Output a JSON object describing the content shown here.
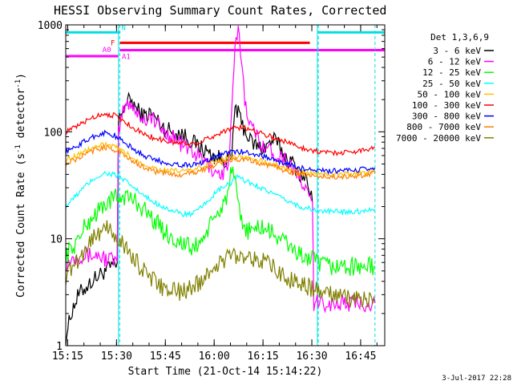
{
  "chart_data": {
    "type": "line",
    "title": "HESSI Observing Summary Count Rates, Corrected",
    "xlabel": "Start Time (21-Oct-14 15:14:22)",
    "ylabel_main": "Corrected Count Rate (s",
    "ylabel_sup1": "-1",
    "ylabel_mid": " detector",
    "ylabel_sup2": "-1",
    "ylabel_end": ")",
    "yscale": "log",
    "ylim": [
      1,
      1000
    ],
    "xlim_minutes": [
      0,
      98
    ],
    "y_ticks": [
      {
        "value": 1,
        "label": "1"
      },
      {
        "value": 10,
        "label": "10"
      },
      {
        "value": 100,
        "label": "100"
      },
      {
        "value": 1000,
        "label": "1000"
      }
    ],
    "x_ticks": [
      {
        "value": 0.6,
        "label": "15:15"
      },
      {
        "value": 15.6,
        "label": "15:30"
      },
      {
        "value": 30.6,
        "label": "15:45"
      },
      {
        "value": 45.6,
        "label": "16:00"
      },
      {
        "value": 60.6,
        "label": "16:15"
      },
      {
        "value": 75.6,
        "label": "16:30"
      },
      {
        "value": 90.6,
        "label": "16:45"
      }
    ],
    "legend_title": "Det 1,3,6,9",
    "legend_placement": "right",
    "timestamp": "3-Jul-2017 22:28",
    "markers": [
      {
        "label": "N",
        "color": "#00e0e0"
      },
      {
        "label": "F",
        "color": "#ff0000"
      },
      {
        "label": "A0",
        "color": "#ff00ff"
      },
      {
        "label": "A1",
        "color": "#ff00ff"
      }
    ],
    "bars": [
      {
        "name": "night-left",
        "x": [
          0,
          16.8
        ],
        "y": 850,
        "color": "#00e0e0"
      },
      {
        "name": "night-right",
        "x": [
          77.5,
          98
        ],
        "y": 850,
        "color": "#00e0e0"
      },
      {
        "name": "flare",
        "x": [
          16.5,
          75
        ],
        "y": 680,
        "color": "#ff0000"
      },
      {
        "name": "attenuator-a0",
        "x": [
          0,
          16.2
        ],
        "y": 510,
        "color": "#ff00ff"
      },
      {
        "name": "attenuator-a1",
        "x": [
          16.5,
          98
        ],
        "y": 580,
        "color": "#ff00ff"
      }
    ],
    "vlines": [
      {
        "x": 16.2,
        "color": "#00e0e0",
        "dash": false
      },
      {
        "x": 16.6,
        "color": "#00e0e0",
        "dash": true
      },
      {
        "x": 77.3,
        "color": "#00e0e0",
        "dash": false
      },
      {
        "x": 77.6,
        "color": "#00e0e0",
        "dash": true
      },
      {
        "x": 95.0,
        "color": "#00e0e0",
        "dash": true
      }
    ],
    "series": [
      {
        "name": "3 - 6 keV",
        "color": "#000000",
        "gap": [
          76.2,
          98
        ],
        "x": [
          0,
          2,
          4,
          6,
          8,
          10,
          12,
          14,
          15.8,
          16.2,
          18,
          20,
          22,
          24,
          26,
          28,
          30,
          33,
          36,
          39,
          42,
          45,
          48,
          51,
          52,
          54,
          57,
          60,
          62,
          64,
          66,
          68,
          70,
          72,
          74,
          75.8
        ],
        "y": [
          1.2,
          2.2,
          3.0,
          3.5,
          4.0,
          4.5,
          5.0,
          5.5,
          5.5,
          120,
          180,
          200,
          160,
          140,
          150,
          130,
          110,
          100,
          95,
          80,
          70,
          60,
          55,
          55,
          180,
          120,
          80,
          70,
          75,
          85,
          70,
          55,
          50,
          40,
          35,
          22
        ]
      },
      {
        "name": "6 - 12 keV",
        "color": "#ff00ff",
        "gap": null,
        "x": [
          0,
          2,
          4,
          6,
          8,
          10,
          12,
          14,
          15.8,
          16.2,
          18,
          20,
          22,
          24,
          26,
          28,
          30,
          33,
          36,
          39,
          42,
          45,
          48,
          50,
          51,
          52,
          53,
          54,
          55,
          57,
          60,
          63,
          66,
          69,
          72,
          74,
          75.8,
          76.2,
          80,
          85,
          90,
          95
        ],
        "y": [
          6,
          6.5,
          7,
          7,
          7,
          7,
          6.5,
          6.5,
          6,
          100,
          170,
          190,
          150,
          130,
          140,
          120,
          100,
          90,
          75,
          65,
          55,
          45,
          40,
          50,
          140,
          600,
          850,
          500,
          200,
          110,
          80,
          65,
          60,
          50,
          35,
          28,
          20,
          2.5,
          2.5,
          2.5,
          2.5,
          2.5
        ]
      },
      {
        "name": "12 - 25 keV",
        "color": "#00ff00",
        "gap": null,
        "x": [
          0,
          3,
          6,
          9,
          12,
          15,
          18,
          21,
          24,
          27,
          30,
          33,
          36,
          39,
          42,
          45,
          48,
          50,
          51,
          52,
          53,
          54,
          56,
          58,
          60,
          62,
          64,
          66,
          68,
          70,
          72,
          75,
          77,
          80,
          85,
          90,
          95
        ],
        "y": [
          7,
          9,
          13,
          17,
          21,
          24,
          25,
          23,
          19,
          15,
          12,
          10,
          9,
          8,
          10,
          14,
          20,
          28,
          45,
          32,
          20,
          14,
          12,
          12,
          13,
          12,
          11,
          10,
          9,
          8,
          7,
          6.5,
          6,
          5.5,
          5.5,
          5.5,
          5.5
        ]
      },
      {
        "name": "25 - 50 keV",
        "color": "#00ffff",
        "gap": null,
        "x": [
          0,
          3,
          6,
          9,
          12,
          15,
          18,
          21,
          24,
          27,
          30,
          33,
          36,
          39,
          42,
          45,
          48,
          51,
          52,
          54,
          57,
          60,
          63,
          66,
          69,
          72,
          75,
          78,
          81,
          85,
          90,
          95
        ],
        "y": [
          20,
          25,
          31,
          37,
          41,
          40,
          35,
          30,
          25,
          22,
          20,
          18,
          17,
          17,
          20,
          25,
          30,
          33,
          38,
          36,
          33,
          30,
          27,
          24,
          22,
          20,
          19,
          18,
          18,
          18,
          18,
          19
        ]
      },
      {
        "name": "50 - 100 keV",
        "color": "#ffbf00",
        "gap": null,
        "x": [
          0,
          3,
          6,
          9,
          12,
          15,
          18,
          21,
          24,
          27,
          30,
          33,
          36,
          39,
          42,
          45,
          48,
          51,
          54,
          57,
          60,
          63,
          66,
          69,
          72,
          75,
          78,
          81,
          85,
          90,
          95
        ],
        "y": [
          55,
          60,
          66,
          72,
          76,
          72,
          64,
          56,
          50,
          46,
          44,
          43,
          43,
          44,
          47,
          52,
          56,
          58,
          58,
          56,
          54,
          50,
          47,
          44,
          42,
          41,
          40,
          40,
          40,
          41,
          43
        ]
      },
      {
        "name": "100 - 300 keV",
        "color": "#ff0000",
        "gap": null,
        "x": [
          0,
          3,
          6,
          9,
          12,
          15,
          18,
          21,
          24,
          27,
          30,
          33,
          36,
          39,
          42,
          45,
          48,
          51,
          54,
          57,
          60,
          63,
          66,
          69,
          72,
          75,
          78,
          81,
          85,
          90,
          95
        ],
        "y": [
          100,
          110,
          125,
          140,
          148,
          142,
          125,
          108,
          95,
          88,
          83,
          80,
          78,
          78,
          82,
          90,
          100,
          108,
          110,
          105,
          98,
          90,
          84,
          78,
          72,
          68,
          65,
          64,
          64,
          66,
          72
        ]
      },
      {
        "name": "300 - 800 keV",
        "color": "#0000ff",
        "gap": null,
        "x": [
          0,
          3,
          6,
          9,
          12,
          15,
          18,
          21,
          24,
          27,
          30,
          33,
          36,
          39,
          42,
          45,
          48,
          51,
          54,
          57,
          60,
          63,
          66,
          69,
          72,
          75,
          78,
          81,
          85,
          90,
          95
        ],
        "y": [
          65,
          72,
          82,
          92,
          98,
          92,
          80,
          68,
          60,
          55,
          52,
          50,
          49,
          49,
          52,
          57,
          62,
          65,
          65,
          63,
          60,
          56,
          52,
          49,
          46,
          44,
          43,
          43,
          43,
          44,
          46
        ]
      },
      {
        "name": "800 - 7000 keV",
        "color": "#ff8000",
        "gap": null,
        "x": [
          0,
          3,
          6,
          9,
          12,
          15,
          18,
          21,
          24,
          27,
          30,
          33,
          36,
          39,
          42,
          45,
          48,
          51,
          54,
          57,
          60,
          63,
          66,
          69,
          72,
          75,
          78,
          81,
          85,
          90,
          95
        ],
        "y": [
          50,
          55,
          61,
          68,
          72,
          68,
          60,
          52,
          47,
          43,
          41,
          40,
          40,
          41,
          44,
          48,
          52,
          55,
          55,
          53,
          51,
          48,
          45,
          42,
          40,
          39,
          38,
          38,
          38,
          39,
          41
        ]
      },
      {
        "name": "7000 - 20000 keV",
        "color": "#808000",
        "gap": null,
        "x": [
          0,
          3,
          6,
          9,
          12,
          15,
          18,
          21,
          24,
          27,
          30,
          33,
          36,
          39,
          42,
          45,
          48,
          51,
          54,
          57,
          60,
          63,
          66,
          69,
          72,
          75,
          78,
          81,
          85,
          90,
          95
        ],
        "y": [
          4.5,
          6,
          8,
          11,
          12.5,
          11,
          8.5,
          6.5,
          5,
          4,
          3.5,
          3.2,
          3.2,
          3.5,
          4.2,
          5.2,
          6.2,
          7,
          7.2,
          6.8,
          6.2,
          5.5,
          4.8,
          4.2,
          3.8,
          3.5,
          3.2,
          3.0,
          2.8,
          2.7,
          2.7
        ]
      }
    ]
  }
}
